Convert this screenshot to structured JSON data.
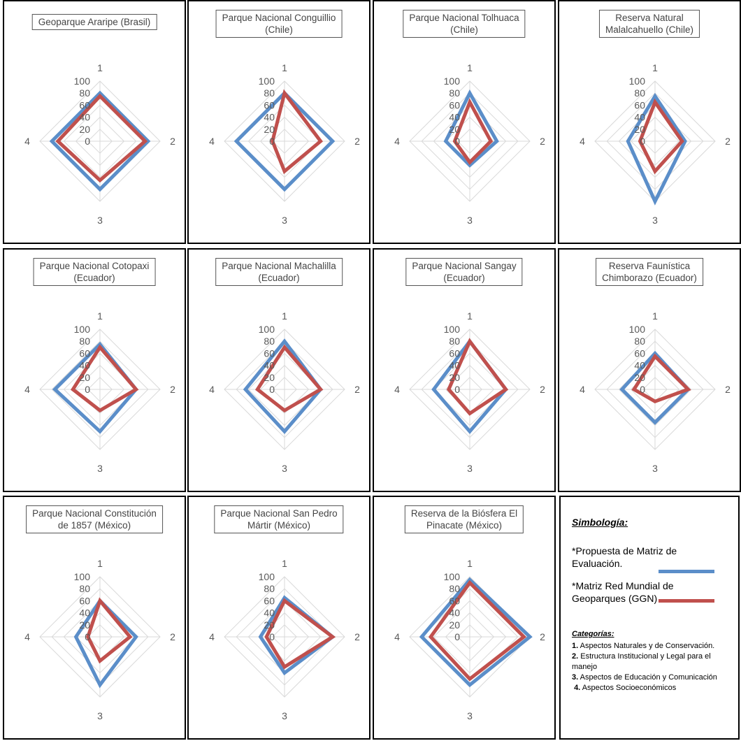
{
  "colors": {
    "propuesta": "#5b8ec9",
    "ggn": "#c0504d",
    "grid": "#d9d9d9",
    "label": "#595959"
  },
  "axis_labels": [
    "1",
    "2",
    "3",
    "4"
  ],
  "ticks": [
    "0",
    "20",
    "40",
    "60",
    "80",
    "100"
  ],
  "legend": {
    "title": "Simbología:",
    "series": [
      {
        "line1": "*Propuesta de Matriz de",
        "line2": "Evaluación."
      },
      {
        "line1": "*Matriz Red Mundial de",
        "line2": "Geoparques (GGN)"
      }
    ],
    "categories_title": "Categorías:",
    "categories": [
      {
        "num": "1.",
        "text": "Aspectos Naturales y de Conservación."
      },
      {
        "num": "2.",
        "text": "Estructura Institucional y Legal para el manejo"
      },
      {
        "num": "3.",
        "text": "Aspectos de Educación y Comunicación"
      },
      {
        "num": "4.",
        "text": "Aspectos Socioeconómicos"
      }
    ]
  },
  "chart_data": [
    {
      "type": "radar",
      "title": [
        "Geoparque Araripe (Brasil)"
      ],
      "categories": [
        "1",
        "2",
        "3",
        "4"
      ],
      "rlim": [
        0,
        100
      ],
      "series": [
        {
          "name": "*Propuesta de Matriz de Evaluación.",
          "values": [
            80,
            80,
            80,
            80
          ]
        },
        {
          "name": "*Matriz Red Mundial de Geoparques (GGN)",
          "values": [
            75,
            75,
            65,
            70
          ]
        }
      ]
    },
    {
      "type": "radar",
      "title": [
        "Parque Nacional Conguillio",
        "(Chile)"
      ],
      "categories": [
        "1",
        "2",
        "3",
        "4"
      ],
      "rlim": [
        0,
        100
      ],
      "series": [
        {
          "name": "*Propuesta de Matriz de Evaluación.",
          "values": [
            80,
            80,
            80,
            80
          ]
        },
        {
          "name": "*Matriz Red Mundial de Geoparques (GGN)",
          "values": [
            80,
            60,
            50,
            20
          ]
        }
      ]
    },
    {
      "type": "radar",
      "title": [
        "Parque Nacional Tolhuaca",
        "(Chile)"
      ],
      "categories": [
        "1",
        "2",
        "3",
        "4"
      ],
      "rlim": [
        0,
        100
      ],
      "series": [
        {
          "name": "*Propuesta de Matriz de Evaluación.",
          "values": [
            80,
            45,
            40,
            40
          ]
        },
        {
          "name": "*Matriz Red Mundial de Geoparques (GGN)",
          "values": [
            65,
            35,
            35,
            25
          ]
        }
      ]
    },
    {
      "type": "radar",
      "title": [
        "Reserva Natural",
        "Malalcahuello (Chile)"
      ],
      "categories": [
        "1",
        "2",
        "3",
        "4"
      ],
      "rlim": [
        0,
        100
      ],
      "series": [
        {
          "name": "*Propuesta de Matriz de Evaluación.",
          "values": [
            75,
            50,
            100,
            45
          ]
        },
        {
          "name": "*Matriz Red Mundial de Geoparques (GGN)",
          "values": [
            65,
            45,
            50,
            25
          ]
        }
      ]
    },
    {
      "type": "radar",
      "title": [
        "Parque Nacional Cotopaxi",
        "(Ecuador)"
      ],
      "categories": [
        "1",
        "2",
        "3",
        "4"
      ],
      "rlim": [
        0,
        100
      ],
      "series": [
        {
          "name": "*Propuesta de Matriz de Evaluación.",
          "values": [
            75,
            60,
            70,
            75
          ]
        },
        {
          "name": "*Matriz Red Mundial de Geoparques (GGN)",
          "values": [
            70,
            60,
            35,
            45
          ]
        }
      ]
    },
    {
      "type": "radar",
      "title": [
        "Parque Nacional Machalilla",
        "(Ecuador)"
      ],
      "categories": [
        "1",
        "2",
        "3",
        "4"
      ],
      "rlim": [
        0,
        100
      ],
      "series": [
        {
          "name": "*Propuesta de Matriz de Evaluación.",
          "values": [
            80,
            60,
            70,
            65
          ]
        },
        {
          "name": "*Matriz Red Mundial de Geoparques (GGN)",
          "values": [
            70,
            60,
            35,
            45
          ]
        }
      ]
    },
    {
      "type": "radar",
      "title": [
        "Parque Nacional Sangay",
        "(Ecuador)"
      ],
      "categories": [
        "1",
        "2",
        "3",
        "4"
      ],
      "rlim": [
        0,
        100
      ],
      "series": [
        {
          "name": "*Propuesta de Matriz de Evaluación.",
          "values": [
            80,
            60,
            70,
            60
          ]
        },
        {
          "name": "*Matriz Red Mundial de Geoparques (GGN)",
          "values": [
            80,
            60,
            40,
            35
          ]
        }
      ]
    },
    {
      "type": "radar",
      "title": [
        "Reserva Faunística",
        "Chimborazo (Ecuador)"
      ],
      "categories": [
        "1",
        "2",
        "3",
        "4"
      ],
      "rlim": [
        0,
        100
      ],
      "series": [
        {
          "name": "*Propuesta de Matriz de Evaluación.",
          "values": [
            60,
            55,
            55,
            55
          ]
        },
        {
          "name": "*Matriz Red Mundial de Geoparques (GGN)",
          "values": [
            55,
            55,
            20,
            35
          ]
        }
      ]
    },
    {
      "type": "radar",
      "title": [
        "Parque Nacional Constitución",
        "de 1857 (México)"
      ],
      "categories": [
        "1",
        "2",
        "3",
        "4"
      ],
      "rlim": [
        0,
        100
      ],
      "series": [
        {
          "name": "*Propuesta de Matriz de Evaluación.",
          "values": [
            60,
            60,
            80,
            40
          ]
        },
        {
          "name": "*Matriz Red Mundial de Geoparques (GGN)",
          "values": [
            60,
            50,
            40,
            20
          ]
        }
      ]
    },
    {
      "type": "radar",
      "title": [
        "Parque Nacional San Pedro",
        "Mártir (México)"
      ],
      "categories": [
        "1",
        "2",
        "3",
        "4"
      ],
      "rlim": [
        0,
        100
      ],
      "series": [
        {
          "name": "*Propuesta de Matriz de Evaluación.",
          "values": [
            65,
            80,
            60,
            40
          ]
        },
        {
          "name": "*Matriz Red Mundial de Geoparques (GGN)",
          "values": [
            60,
            80,
            50,
            30
          ]
        }
      ]
    },
    {
      "type": "radar",
      "title": [
        "Reserva de la Biósfera El",
        "Pinacate (México)"
      ],
      "categories": [
        "1",
        "2",
        "3",
        "4"
      ],
      "rlim": [
        0,
        100
      ],
      "series": [
        {
          "name": "*Propuesta de Matriz de Evaluación.",
          "values": [
            95,
            100,
            80,
            80
          ]
        },
        {
          "name": "*Matriz Red Mundial de Geoparques (GGN)",
          "values": [
            90,
            90,
            70,
            65
          ]
        }
      ]
    }
  ]
}
